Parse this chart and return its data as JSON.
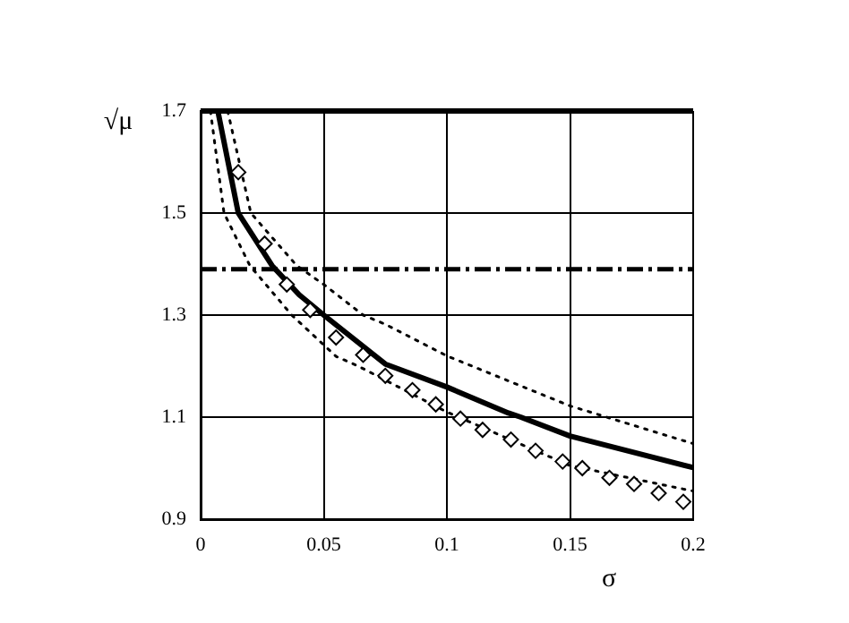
{
  "chart_data": {
    "type": "line",
    "xlabel": "σ",
    "ylabel": "√μ",
    "xlim": [
      0,
      0.2
    ],
    "xticks": [
      0,
      0.05,
      0.1,
      0.15,
      0.2
    ],
    "ylim": [
      0.9,
      1.7
    ],
    "yticks": [
      0.9,
      1.1,
      1.3,
      1.5,
      1.7
    ],
    "grid": true,
    "ref_lines": [
      {
        "axis": "y",
        "value": 1.7,
        "color": "#000000",
        "line_style": "solid"
      },
      {
        "axis": "y",
        "value": 1.39,
        "color": "#000000",
        "line_style": "dashed"
      }
    ],
    "series": [
      {
        "color": "#000000",
        "line_style": "solid",
        "marker": "none",
        "x": [
          0.007,
          0.0153,
          0.029,
          0.04,
          0.05,
          0.075,
          0.1,
          0.125,
          0.13,
          0.15,
          0.2
        ],
        "values": [
          1.7,
          1.5,
          1.397,
          1.34,
          1.3,
          1.204,
          1.159,
          1.108,
          1.1,
          1.063,
          1.001
        ]
      },
      {
        "type": "line",
        "color": "#000000",
        "line_style": "dotted",
        "marker": "none",
        "x": [
          0.011,
          0.0204,
          0.039,
          0.05,
          0.066,
          0.075,
          0.1,
          0.15,
          0.2
        ],
        "values": [
          1.7,
          1.5,
          1.397,
          1.36,
          1.3,
          1.282,
          1.22,
          1.122,
          1.048
        ]
      },
      {
        "type": "line",
        "color": "#000000",
        "line_style": "dotted",
        "marker": "none",
        "x": [
          0.004,
          0.0095,
          0.02,
          0.037,
          0.055,
          0.064,
          0.1,
          0.15,
          0.2
        ],
        "values": [
          1.7,
          1.5,
          1.397,
          1.3,
          1.219,
          1.2,
          1.11,
          1.005,
          0.955
        ]
      },
      {
        "type": "scatter",
        "color": "#000000",
        "marker": "diamond",
        "x": [
          0.0153,
          0.026,
          0.035,
          0.0445,
          0.055,
          0.066,
          0.075,
          0.086,
          0.0955,
          0.1055,
          0.1145,
          0.126,
          0.136,
          0.147,
          0.155,
          0.166,
          0.176,
          0.186,
          0.196
        ],
        "values": [
          1.58,
          1.44,
          1.36,
          1.31,
          1.256,
          1.222,
          1.181,
          1.153,
          1.125,
          1.097,
          1.075,
          1.056,
          1.034,
          1.013,
          1,
          0.981,
          0.969,
          0.951,
          0.934
        ]
      }
    ]
  }
}
